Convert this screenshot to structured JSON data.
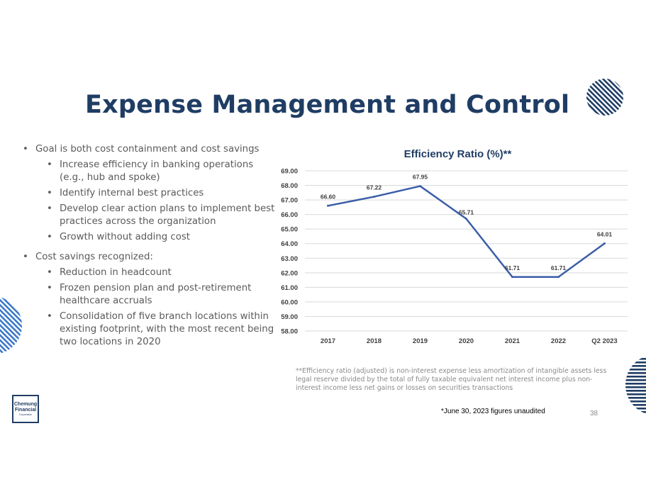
{
  "slide": {
    "title": "Expense Management and Control",
    "page_number": "38",
    "unaudited_note": "*June 30, 2023 figures unaudited",
    "footnote": "**Efficiency ratio (adjusted) is non-interest expense less amortization of intangible assets less legal reserve divided by the total of fully taxable equivalent net interest income plus non-interest income less net gains or losses on securities transactions",
    "logo": {
      "line1": "Chemung",
      "line2": "Financial",
      "line3": "Corporation"
    }
  },
  "bullets": {
    "goal": "Goal is both cost containment and cost savings",
    "goal_items": [
      "Increase efficiency in banking operations (e.g., hub and spoke)",
      "Identify internal best practices",
      "Develop clear action plans to implement best practices across the organization",
      "Growth without adding cost"
    ],
    "savings": "Cost savings recognized:",
    "savings_items": [
      "Reduction in headcount",
      "Frozen pension plan and post-retirement healthcare accruals",
      "Consolidation of five branch locations within existing footprint, with the most recent being two locations in 2020"
    ]
  },
  "colors": {
    "title": "#1f3d64",
    "line": "#3c5ea8",
    "grid": "#d9d9d9",
    "deco_dark": "#1f3d64",
    "deco_light": "#3c78c8"
  },
  "chart_data": {
    "type": "line",
    "title": "Efficiency Ratio (%)**",
    "categories": [
      "2017",
      "2018",
      "2019",
      "2020",
      "2021",
      "2022",
      "Q2 2023"
    ],
    "series": [
      {
        "name": "Efficiency Ratio",
        "values": [
          66.6,
          67.22,
          67.95,
          65.71,
          61.71,
          61.71,
          64.01
        ]
      }
    ],
    "data_labels": [
      "66.60",
      "67.22",
      "67.95",
      "65.71",
      "61.71",
      "61.71",
      "64.01"
    ],
    "yticks": [
      "58.00",
      "59.00",
      "60.00",
      "61.00",
      "62.00",
      "63.00",
      "64.00",
      "65.00",
      "66.00",
      "67.00",
      "68.00",
      "69.00"
    ],
    "ylim": [
      58,
      69
    ],
    "grid": true,
    "legend": "none",
    "xlabel": "",
    "ylabel": ""
  }
}
